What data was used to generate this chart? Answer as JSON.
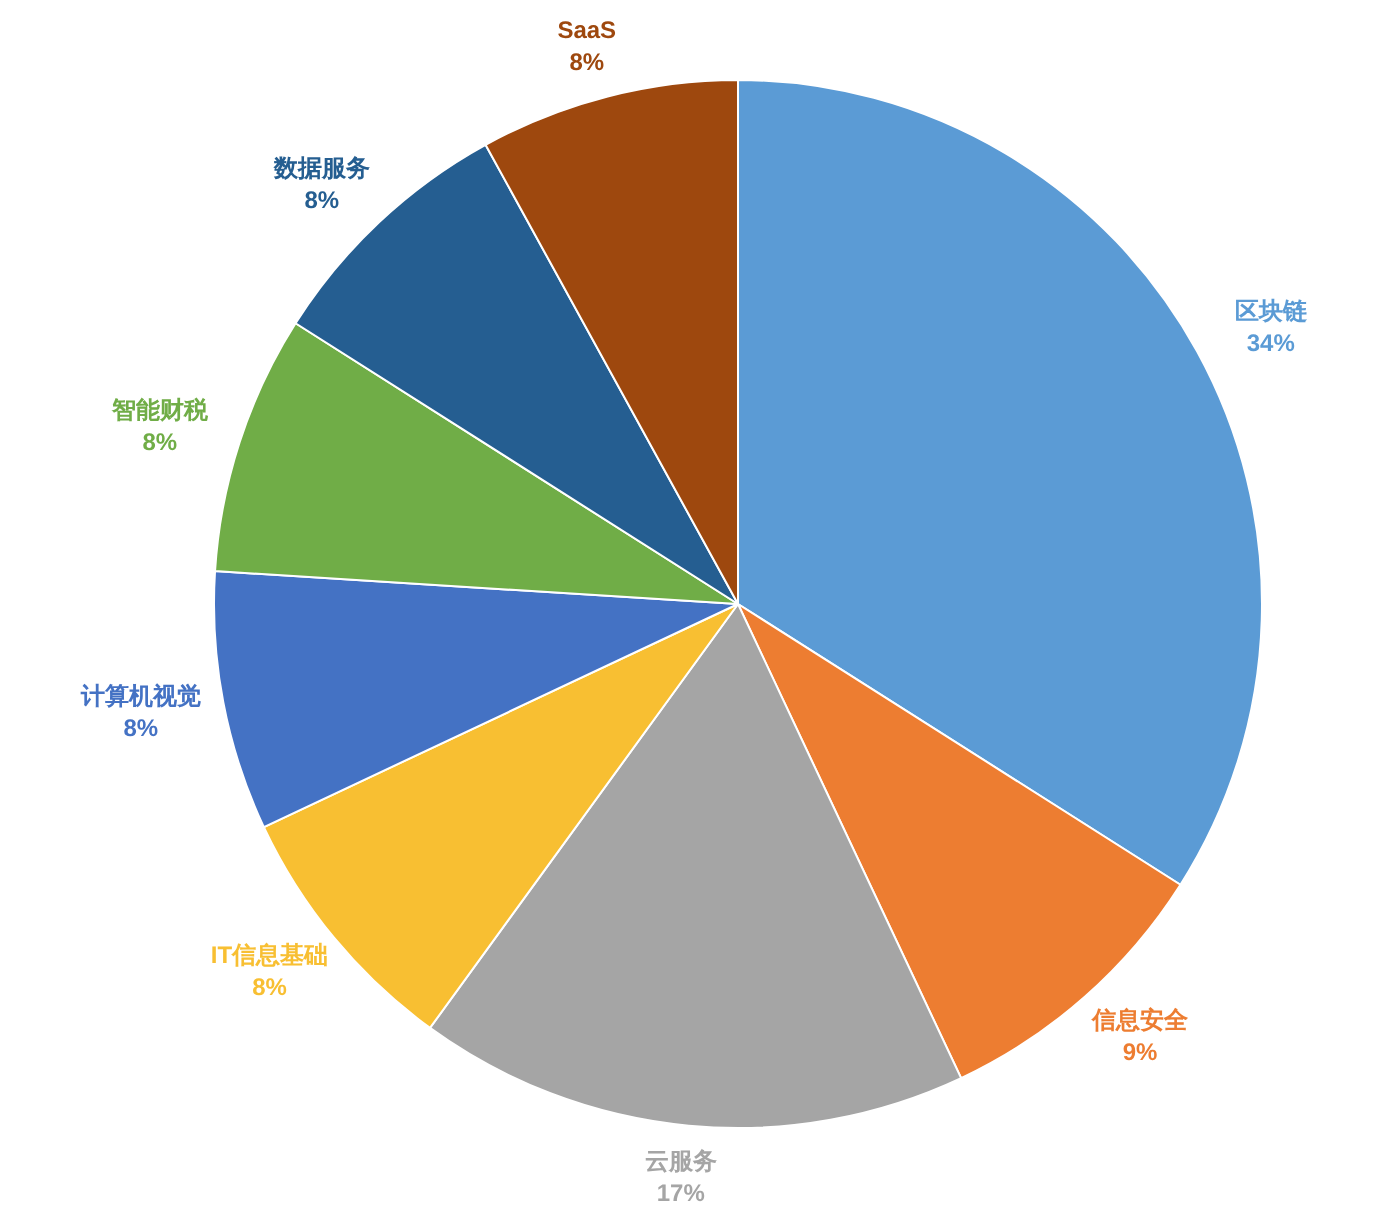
{
  "chart_data": {
    "type": "pie",
    "categories": [
      "区块链",
      "信息安全",
      "云服务",
      "IT信息基础",
      "计算机视觉",
      "智能财税",
      "数据服务",
      "SaaS"
    ],
    "values": [
      34,
      9,
      17,
      8,
      8,
      8,
      8,
      8
    ],
    "value_labels": [
      "34%",
      "9%",
      "17%",
      "8%",
      "8%",
      "8%",
      "8%",
      "8%"
    ],
    "colors": [
      "#5b9bd5",
      "#ed7d31",
      "#a5a5a5",
      "#f8bf32",
      "#4472c4",
      "#70ad47",
      "#255e91",
      "#9e480e"
    ]
  }
}
